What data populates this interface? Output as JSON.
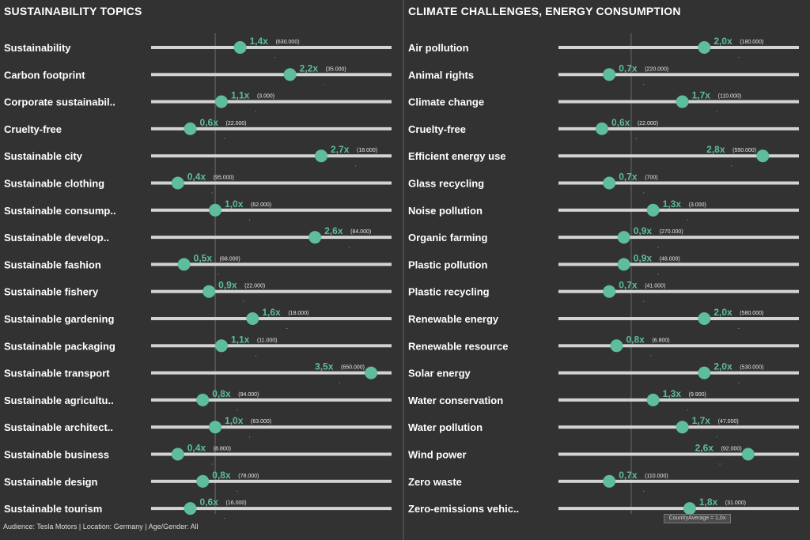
{
  "footer": "Audience: Tesla Motors | Location: Germany | Age/Gender: All",
  "country_average_label": "CountryAverage = 1,0x",
  "colors": {
    "background": "#323232",
    "dot": "#5dbd9d",
    "track": "#d3d3d3",
    "text": "#ffffff"
  },
  "chart_data": [
    {
      "type": "scatter",
      "title": "SUSTAINABILITY TOPICS",
      "xlim": [
        0.2,
        3.6
      ],
      "reference_value": 1.0,
      "rows": [
        {
          "label": "Sustainability",
          "value": 1.4,
          "value_label": "1,4x",
          "volume": "(630.000)"
        },
        {
          "label": "Carbon footprint",
          "value": 2.2,
          "value_label": "2,2x",
          "volume": "(35.000)"
        },
        {
          "label": "Corporate sustainabil..",
          "value": 1.1,
          "value_label": "1,1x",
          "volume": "(3.000)"
        },
        {
          "label": "Cruelty-free",
          "value": 0.6,
          "value_label": "0,6x",
          "volume": "(22.000)"
        },
        {
          "label": "Sustainable city",
          "value": 2.7,
          "value_label": "2,7x",
          "volume": "(18.000)"
        },
        {
          "label": "Sustainable clothing",
          "value": 0.4,
          "value_label": "0,4x",
          "volume": "(95.000)"
        },
        {
          "label": "Sustainable consump..",
          "value": 1.0,
          "value_label": "1,0x",
          "volume": "(62.000)"
        },
        {
          "label": "Sustainable develop..",
          "value": 2.6,
          "value_label": "2,6x",
          "volume": "(84.000)"
        },
        {
          "label": "Sustainable fashion",
          "value": 0.5,
          "value_label": "0,5x",
          "volume": "(68.000)"
        },
        {
          "label": "Sustainable fishery",
          "value": 0.9,
          "value_label": "0,9x",
          "volume": "(22.000)"
        },
        {
          "label": "Sustainable gardening",
          "value": 1.6,
          "value_label": "1,6x",
          "volume": "(18.000)"
        },
        {
          "label": "Sustainable packaging",
          "value": 1.1,
          "value_label": "1,1x",
          "volume": "(11.000)"
        },
        {
          "label": "Sustainable transport",
          "value": 3.5,
          "value_label": "3,5x",
          "volume": "(650.000)"
        },
        {
          "label": "Sustainable agricultu..",
          "value": 0.8,
          "value_label": "0,8x",
          "volume": "(94.000)"
        },
        {
          "label": "Sustainable architect..",
          "value": 1.0,
          "value_label": "1,0x",
          "volume": "(63.000)"
        },
        {
          "label": "Sustainable business",
          "value": 0.4,
          "value_label": "0,4x",
          "volume": "(8.800)"
        },
        {
          "label": "Sustainable design",
          "value": 0.8,
          "value_label": "0,8x",
          "volume": "(78.000)"
        },
        {
          "label": "Sustainable tourism",
          "value": 0.6,
          "value_label": "0,6x",
          "volume": "(16.000)"
        }
      ]
    },
    {
      "type": "scatter",
      "title": "CLIMATE CHALLENGES, ENERGY CONSUMPTION",
      "xlim": [
        0.2,
        3.1
      ],
      "reference_value": 1.0,
      "rows": [
        {
          "label": "Air pollution",
          "value": 2.0,
          "value_label": "2,0x",
          "volume": "(180.000)"
        },
        {
          "label": "Animal rights",
          "value": 0.7,
          "value_label": "0,7x",
          "volume": "(220.000)"
        },
        {
          "label": "Climate change",
          "value": 1.7,
          "value_label": "1,7x",
          "volume": "(110.000)"
        },
        {
          "label": "Cruelty-free",
          "value": 0.6,
          "value_label": "0,6x",
          "volume": "(22.000)"
        },
        {
          "label": "Efficient energy use",
          "value": 2.8,
          "value_label": "2,8x",
          "volume": "(550.000)"
        },
        {
          "label": "Glass recycling",
          "value": 0.7,
          "value_label": "0,7x",
          "volume": "(700)"
        },
        {
          "label": "Noise pollution",
          "value": 1.3,
          "value_label": "1,3x",
          "volume": "(3.000)"
        },
        {
          "label": "Organic farming",
          "value": 0.9,
          "value_label": "0,9x",
          "volume": "(270.000)"
        },
        {
          "label": "Plastic pollution",
          "value": 0.9,
          "value_label": "0,9x",
          "volume": "(48.000)"
        },
        {
          "label": "Plastic recycling",
          "value": 0.7,
          "value_label": "0,7x",
          "volume": "(41.000)"
        },
        {
          "label": "Renewable energy",
          "value": 2.0,
          "value_label": "2,0x",
          "volume": "(580.000)"
        },
        {
          "label": "Renewable resource",
          "value": 0.8,
          "value_label": "0,8x",
          "volume": "(6.800)"
        },
        {
          "label": "Solar energy",
          "value": 2.0,
          "value_label": "2,0x",
          "volume": "(530.000)"
        },
        {
          "label": "Water conservation",
          "value": 1.3,
          "value_label": "1,3x",
          "volume": "(9.900)"
        },
        {
          "label": "Water pollution",
          "value": 1.7,
          "value_label": "1,7x",
          "volume": "(47.000)"
        },
        {
          "label": "Wind power",
          "value": 2.6,
          "value_label": "2,6x",
          "volume": "(92.000)"
        },
        {
          "label": "Zero waste",
          "value": 0.7,
          "value_label": "0,7x",
          "volume": "(110.000)"
        },
        {
          "label": "Zero-emissions vehic..",
          "value": 1.8,
          "value_label": "1,8x",
          "volume": "(31.000)"
        }
      ]
    }
  ]
}
